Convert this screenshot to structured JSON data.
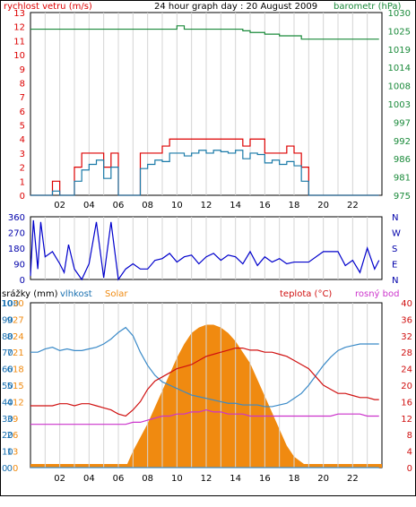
{
  "panels": {
    "wind_baro": {
      "label_left": "rychlost vetru (m/s)",
      "title": "24 hour graph day : 20 August 2009",
      "label_right": "barometr (hPa)",
      "left_ticks": [
        "13",
        "12",
        "11",
        "10",
        "9",
        "8",
        "7",
        "6",
        "5",
        "4",
        "3",
        "2",
        "1",
        "0"
      ],
      "right_ticks": [
        "1030",
        "1025",
        "1019",
        "1014",
        "1008",
        "1003",
        "997",
        "992",
        "986",
        "981",
        "975"
      ]
    },
    "direction": {
      "left_ticks": [
        "360",
        "270",
        "180",
        "90",
        "0"
      ],
      "right_ticks": [
        "N",
        "W",
        "S",
        "E",
        "N"
      ]
    },
    "temp_hum": {
      "legend_rain": "srážky (mm)",
      "legend_humidity": "vlhkost",
      "legend_solar": "Solar",
      "legend_temp": "teplota (°C)",
      "legend_dew": "rosný bod",
      "rain_ticks": [
        "10",
        "9",
        "8",
        "7",
        "6",
        "5",
        "4",
        "3",
        "2",
        "1",
        "0"
      ],
      "humidity_ticks": [
        "100",
        "90",
        "80",
        "70",
        "60",
        "50",
        "40",
        "30",
        "20",
        "10",
        "0"
      ],
      "solar_ticks": [
        "30",
        "27",
        "24",
        "21",
        "18",
        "15",
        "12",
        "9",
        "6",
        "3",
        "0"
      ],
      "temp_ticks": [
        "40",
        "36",
        "32",
        "28",
        "24",
        "20",
        "16",
        "12",
        "8",
        "4",
        "0"
      ]
    },
    "x_ticks": [
      "02",
      "04",
      "06",
      "08",
      "10",
      "12",
      "14",
      "16",
      "18",
      "20",
      "22"
    ]
  },
  "chart_data": [
    {
      "type": "line",
      "name": "wind and barometer",
      "title": "24 hour graph day : 20 August 2009",
      "ylabel": "rychlost vetru (m/s)",
      "y2label": "barometr (hPa)",
      "ylim": [
        0,
        13
      ],
      "y2lim": [
        975,
        1030
      ],
      "x_hours": [
        0,
        1,
        1.5,
        2,
        2.5,
        3,
        3.5,
        4,
        4.5,
        5,
        5.5,
        6,
        6.5,
        7,
        7.5,
        8,
        8.5,
        9,
        9.5,
        10,
        10.5,
        11,
        11.5,
        12,
        12.5,
        13,
        13.5,
        14,
        14.5,
        15,
        15.5,
        16,
        16.5,
        17,
        17.5,
        18,
        18.5,
        19,
        20,
        21,
        22,
        23.8
      ],
      "series": [
        {
          "color": "#dd0000",
          "values": [
            0,
            0,
            1,
            0,
            0,
            2,
            3,
            3,
            3,
            2,
            3,
            0,
            0,
            0,
            3,
            3,
            3,
            3.5,
            4,
            4,
            4,
            4,
            4,
            4,
            4,
            4,
            4,
            4,
            3.5,
            4,
            4,
            3,
            3,
            3,
            3.5,
            3,
            2,
            0,
            0,
            0,
            0,
            0
          ]
        },
        {
          "color": "#1a7aa8",
          "values": [
            0,
            0,
            0.3,
            0,
            0,
            1,
            1.8,
            2.2,
            2.5,
            1.2,
            2,
            0,
            0,
            0,
            1.9,
            2.2,
            2.5,
            2.4,
            3,
            3,
            2.8,
            3,
            3.2,
            3,
            3.2,
            3.1,
            3,
            3.2,
            2.6,
            3,
            2.9,
            2.3,
            2.5,
            2.2,
            2.4,
            2.1,
            1,
            0,
            0,
            0,
            0,
            0
          ]
        },
        {
          "color": "#1a8a3a",
          "values": [
            1025,
            1025,
            1025,
            1025,
            1025,
            1025,
            1025,
            1025,
            1025,
            1025,
            1025,
            1025,
            1025,
            1025,
            1025,
            1025,
            1025,
            1025,
            1025,
            1026,
            1025,
            1025,
            1025,
            1025,
            1025,
            1025,
            1025,
            1025,
            1024.5,
            1024,
            1024,
            1023.5,
            1023.5,
            1023,
            1023,
            1023,
            1022,
            1022,
            1022,
            1022,
            1022,
            1022
          ]
        }
      ]
    },
    {
      "type": "line",
      "name": "wind direction",
      "ylim": [
        0,
        360
      ],
      "x_hours": [
        0,
        0.2,
        0.5,
        0.7,
        1,
        1.5,
        2,
        2.3,
        2.6,
        3,
        3.5,
        4,
        4.5,
        5,
        5.5,
        6,
        6.5,
        7,
        7.5,
        8,
        8.5,
        9,
        9.5,
        10,
        10.5,
        11,
        11.5,
        12,
        12.5,
        13,
        13.5,
        14,
        14.5,
        15,
        15.5,
        16,
        16.5,
        17,
        17.5,
        18,
        18.5,
        19,
        20,
        21,
        21.5,
        22,
        22.5,
        23,
        23.5,
        23.8
      ],
      "values": [
        20,
        340,
        60,
        330,
        130,
        160,
        90,
        40,
        200,
        60,
        0,
        90,
        330,
        10,
        330,
        0,
        60,
        90,
        60,
        60,
        110,
        120,
        150,
        100,
        130,
        140,
        90,
        130,
        150,
        110,
        140,
        130,
        90,
        160,
        80,
        130,
        100,
        120,
        90,
        100,
        100,
        100,
        160,
        160,
        80,
        110,
        40,
        180,
        60,
        110
      ],
      "color": "#0000cc"
    },
    {
      "type": "line",
      "name": "temperature, humidity, solar",
      "x_hours": [
        0,
        0.5,
        1,
        1.5,
        2,
        2.5,
        3,
        3.5,
        4,
        4.5,
        5,
        5.5,
        6,
        6.5,
        7,
        7.5,
        8,
        8.5,
        9,
        9.5,
        10,
        10.5,
        11,
        11.5,
        12,
        12.5,
        13,
        13.5,
        14,
        14.5,
        15,
        15.5,
        16,
        16.5,
        17,
        17.5,
        18,
        18.5,
        19,
        19.5,
        20,
        20.5,
        21,
        21.5,
        22,
        22.5,
        23,
        23.5,
        23.8
      ],
      "series": [
        {
          "name": "vlhkost",
          "color": "#3a8ac8",
          "ylim": [
            0,
            100
          ],
          "values": [
            70,
            70,
            72,
            73,
            71,
            72,
            71,
            71,
            72,
            73,
            75,
            78,
            82,
            85,
            80,
            70,
            62,
            56,
            52,
            50,
            48,
            46,
            44,
            43,
            42,
            41,
            40,
            39,
            39,
            38,
            38,
            38,
            37,
            37,
            38,
            39,
            42,
            45,
            50,
            56,
            62,
            67,
            71,
            73,
            74,
            75,
            75,
            75,
            75
          ]
        },
        {
          "name": "teplota (°C)",
          "color": "#d01010",
          "ylim": [
            0,
            40
          ],
          "values": [
            15,
            15,
            15,
            15,
            15.5,
            15.5,
            15,
            15.5,
            15.5,
            15,
            14.5,
            14,
            13,
            12.5,
            14,
            16,
            19,
            21,
            22,
            23,
            24,
            24.5,
            25,
            26,
            27,
            27.5,
            28,
            28.5,
            29,
            29,
            28.5,
            28.5,
            28,
            28,
            27.5,
            27,
            26,
            25,
            24,
            22,
            20,
            19,
            18,
            18,
            17.5,
            17,
            17,
            16.5,
            16.5
          ]
        },
        {
          "name": "rosný bod",
          "color": "#cc33cc",
          "ylim": [
            0,
            40
          ],
          "values": [
            10.5,
            10.5,
            10.5,
            10.5,
            10.5,
            10.5,
            10.5,
            10.5,
            10.5,
            10.5,
            10.5,
            10.5,
            10.5,
            10.5,
            11,
            11,
            11.5,
            12,
            12.5,
            12.5,
            13,
            13,
            13.5,
            13.5,
            14,
            13.5,
            13.5,
            13,
            13,
            13,
            12.5,
            12.5,
            12.5,
            12.5,
            12.5,
            12.5,
            12.5,
            12.5,
            12.5,
            12.5,
            12.5,
            12.5,
            13,
            13,
            13,
            13,
            12.5,
            12.5,
            12.5
          ]
        },
        {
          "name": "Solar",
          "color": "#f08a10",
          "ylim": [
            0,
            30
          ],
          "values": [
            0,
            0,
            0,
            0,
            0,
            0,
            0,
            0,
            0,
            0,
            0,
            0,
            0,
            0,
            3,
            5.5,
            8,
            11,
            14,
            17,
            20,
            22.5,
            24.5,
            25.5,
            26,
            26,
            25.5,
            24.5,
            23,
            21,
            19,
            16,
            13,
            10,
            7,
            4,
            2,
            1,
            0,
            0,
            0,
            0,
            0,
            0,
            0,
            0,
            0,
            0,
            0
          ]
        },
        {
          "name": "srážky (mm)",
          "color": "#3a8ac8",
          "ylim": [
            0,
            10
          ],
          "values": [
            0,
            0,
            0,
            0,
            0,
            0,
            0,
            0,
            0,
            0,
            0,
            0,
            0,
            0,
            0,
            0,
            0,
            0,
            0,
            0,
            0,
            0,
            0,
            0,
            0,
            0,
            0,
            0,
            0,
            0,
            0,
            0,
            0,
            0,
            0,
            0,
            0,
            0,
            0,
            0,
            0,
            0,
            0,
            0,
            0,
            0,
            0,
            0,
            0
          ]
        }
      ]
    }
  ]
}
